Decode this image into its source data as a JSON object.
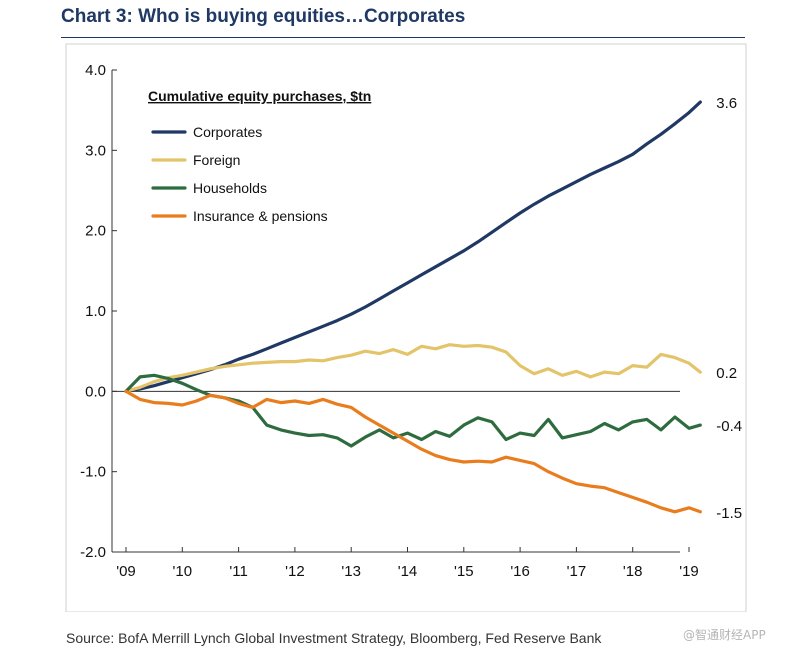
{
  "header": {
    "title": "Chart 3: Who is buying equities…Corporates"
  },
  "footer": {
    "source": "Source: BofA Merrill Lynch Global Investment Strategy, Bloomberg, Fed Reserve Bank",
    "watermark": "@智通财经APP"
  },
  "chart_data": {
    "type": "line",
    "title": "Chart 3: Who is buying equities…Corporates",
    "legend_title": "Cumulative equity purchases, $tn",
    "legend_position": "top-left",
    "xlabel": "",
    "ylabel": "",
    "xlim": [
      2009,
      2019.25
    ],
    "ylim": [
      -2.0,
      4.0
    ],
    "y_ticks": [
      4.0,
      3.0,
      2.0,
      1.0,
      0.0,
      -1.0,
      -2.0
    ],
    "y_tick_labels": [
      "4.0",
      "3.0",
      "2.0",
      "1.0",
      "0.0",
      "-1.0",
      "-2.0"
    ],
    "x_ticks": [
      2009,
      2010,
      2011,
      2012,
      2013,
      2014,
      2015,
      2016,
      2017,
      2018,
      2019
    ],
    "x_tick_labels": [
      "'09",
      "'10",
      "'11",
      "'12",
      "'13",
      "'14",
      "'15",
      "'16",
      "'17",
      "'18",
      "'19"
    ],
    "grid": false,
    "series": [
      {
        "name": "Corporates",
        "color": "#1f3864",
        "end_label": "3.6",
        "x": [
          2009,
          2009.25,
          2009.5,
          2009.75,
          2010,
          2010.25,
          2010.5,
          2010.75,
          2011,
          2011.25,
          2011.5,
          2011.75,
          2012,
          2012.25,
          2012.5,
          2012.75,
          2013,
          2013.25,
          2013.5,
          2013.75,
          2014,
          2014.25,
          2014.5,
          2014.75,
          2015,
          2015.25,
          2015.5,
          2015.75,
          2016,
          2016.25,
          2016.5,
          2016.75,
          2017,
          2017.25,
          2017.5,
          2017.75,
          2018,
          2018.25,
          2018.5,
          2018.75,
          2019,
          2019.2
        ],
        "y": [
          0.0,
          0.03,
          0.07,
          0.12,
          0.17,
          0.22,
          0.27,
          0.33,
          0.4,
          0.46,
          0.53,
          0.6,
          0.67,
          0.74,
          0.81,
          0.88,
          0.96,
          1.05,
          1.15,
          1.25,
          1.35,
          1.45,
          1.55,
          1.65,
          1.75,
          1.86,
          1.98,
          2.1,
          2.22,
          2.33,
          2.43,
          2.52,
          2.61,
          2.7,
          2.78,
          2.86,
          2.95,
          3.08,
          3.2,
          3.33,
          3.47,
          3.6
        ]
      },
      {
        "name": "Foreign",
        "color": "#e3c46a",
        "end_label": "0.2",
        "x": [
          2009,
          2009.25,
          2009.5,
          2009.75,
          2010,
          2010.25,
          2010.5,
          2010.75,
          2011,
          2011.25,
          2011.5,
          2011.75,
          2012,
          2012.25,
          2012.5,
          2012.75,
          2013,
          2013.25,
          2013.5,
          2013.75,
          2014,
          2014.25,
          2014.5,
          2014.75,
          2015,
          2015.25,
          2015.5,
          2015.75,
          2016,
          2016.25,
          2016.5,
          2016.75,
          2017,
          2017.25,
          2017.5,
          2017.75,
          2018,
          2018.25,
          2018.5,
          2018.75,
          2019,
          2019.2
        ],
        "y": [
          0.0,
          0.05,
          0.12,
          0.17,
          0.2,
          0.24,
          0.28,
          0.31,
          0.33,
          0.35,
          0.36,
          0.37,
          0.37,
          0.39,
          0.38,
          0.42,
          0.45,
          0.5,
          0.47,
          0.52,
          0.46,
          0.56,
          0.53,
          0.58,
          0.56,
          0.57,
          0.55,
          0.49,
          0.32,
          0.22,
          0.28,
          0.2,
          0.25,
          0.18,
          0.24,
          0.22,
          0.32,
          0.3,
          0.46,
          0.42,
          0.35,
          0.24
        ]
      },
      {
        "name": "Households",
        "color": "#2e6b3e",
        "end_label": "-0.4",
        "x": [
          2009,
          2009.25,
          2009.5,
          2009.75,
          2010,
          2010.25,
          2010.5,
          2010.75,
          2011,
          2011.25,
          2011.5,
          2011.75,
          2012,
          2012.25,
          2012.5,
          2012.75,
          2013,
          2013.25,
          2013.5,
          2013.75,
          2014,
          2014.25,
          2014.5,
          2014.75,
          2015,
          2015.25,
          2015.5,
          2015.75,
          2016,
          2016.25,
          2016.5,
          2016.75,
          2017,
          2017.25,
          2017.5,
          2017.75,
          2018,
          2018.25,
          2018.5,
          2018.75,
          2019,
          2019.2
        ],
        "y": [
          0.0,
          0.18,
          0.2,
          0.16,
          0.1,
          0.02,
          -0.05,
          -0.08,
          -0.12,
          -0.2,
          -0.42,
          -0.48,
          -0.52,
          -0.55,
          -0.54,
          -0.58,
          -0.68,
          -0.57,
          -0.48,
          -0.58,
          -0.52,
          -0.6,
          -0.5,
          -0.56,
          -0.42,
          -0.33,
          -0.38,
          -0.6,
          -0.52,
          -0.55,
          -0.35,
          -0.58,
          -0.54,
          -0.5,
          -0.4,
          -0.48,
          -0.38,
          -0.35,
          -0.48,
          -0.32,
          -0.46,
          -0.42
        ]
      },
      {
        "name": "Insurance & pensions",
        "color": "#e97d1e",
        "end_label": "-1.5",
        "x": [
          2009,
          2009.25,
          2009.5,
          2009.75,
          2010,
          2010.25,
          2010.5,
          2010.75,
          2011,
          2011.25,
          2011.5,
          2011.75,
          2012,
          2012.25,
          2012.5,
          2012.75,
          2013,
          2013.25,
          2013.5,
          2013.75,
          2014,
          2014.25,
          2014.5,
          2014.75,
          2015,
          2015.25,
          2015.5,
          2015.75,
          2016,
          2016.25,
          2016.5,
          2016.75,
          2017,
          2017.25,
          2017.5,
          2017.75,
          2018,
          2018.25,
          2018.5,
          2018.75,
          2019,
          2019.2
        ],
        "y": [
          0.0,
          -0.1,
          -0.14,
          -0.15,
          -0.17,
          -0.12,
          -0.05,
          -0.08,
          -0.15,
          -0.2,
          -0.1,
          -0.14,
          -0.12,
          -0.15,
          -0.1,
          -0.16,
          -0.2,
          -0.32,
          -0.42,
          -0.52,
          -0.62,
          -0.72,
          -0.8,
          -0.85,
          -0.88,
          -0.87,
          -0.88,
          -0.82,
          -0.86,
          -0.9,
          -1.0,
          -1.08,
          -1.15,
          -1.18,
          -1.2,
          -1.26,
          -1.32,
          -1.38,
          -1.45,
          -1.5,
          -1.45,
          -1.5
        ]
      }
    ]
  }
}
